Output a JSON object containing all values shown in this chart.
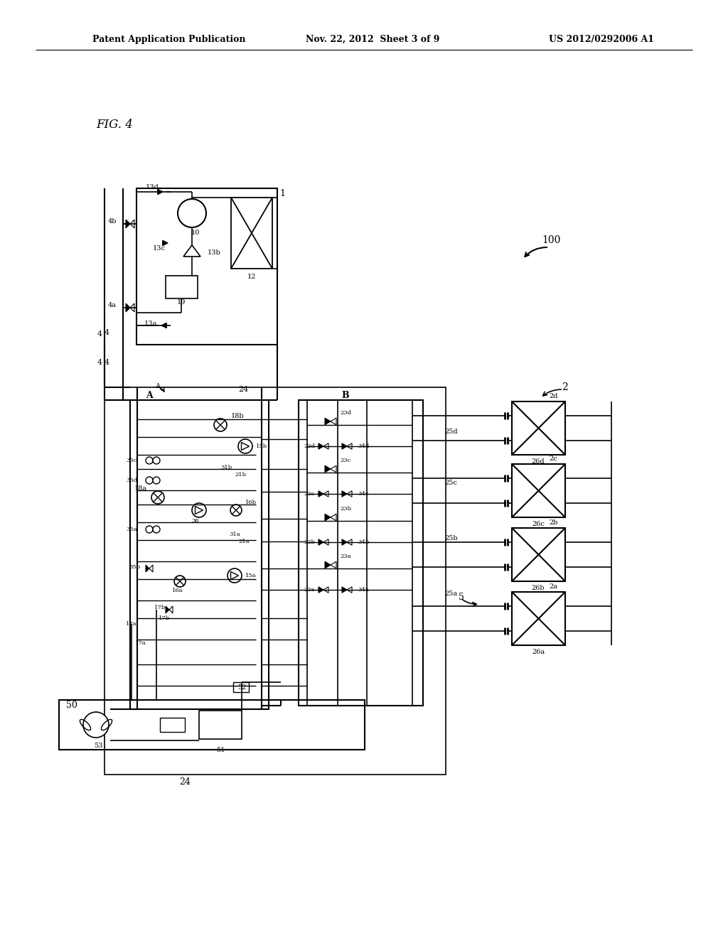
{
  "bg_color": "#ffffff",
  "header_left": "Patent Application Publication",
  "header_mid": "Nov. 22, 2012  Sheet 3 of 9",
  "header_right": "US 2012/0292006 A1",
  "fig_label": "FIG. 4"
}
